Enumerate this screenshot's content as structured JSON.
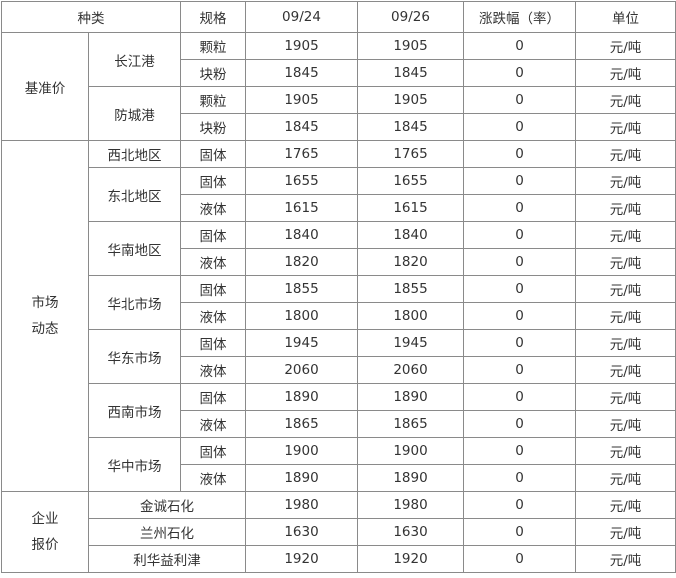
{
  "header": [
    "种类",
    "规格",
    "09/24",
    "09/26",
    "涨跌幅（率）",
    "单位"
  ],
  "groups": [
    {
      "name": "基准价",
      "subgroups": [
        {
          "name": "长江港",
          "rows": [
            {
              "spec": "颗粒",
              "d1": 1905,
              "d2": 1905,
              "change": 0,
              "unit": "元/吨"
            },
            {
              "spec": "块粉",
              "d1": 1845,
              "d2": 1845,
              "change": 0,
              "unit": "元/吨"
            }
          ]
        },
        {
          "name": "防城港",
          "rows": [
            {
              "spec": "颗粒",
              "d1": 1905,
              "d2": 1905,
              "change": 0,
              "unit": "元/吨"
            },
            {
              "spec": "块粉",
              "d1": 1845,
              "d2": 1845,
              "change": 0,
              "unit": "元/吨"
            }
          ]
        }
      ]
    },
    {
      "name": "市场动态",
      "subgroups": [
        {
          "name": "西北地区",
          "rows": [
            {
              "spec": "固体",
              "d1": 1765,
              "d2": 1765,
              "change": 0,
              "unit": "元/吨"
            }
          ]
        },
        {
          "name": "东北地区",
          "rows": [
            {
              "spec": "固体",
              "d1": 1655,
              "d2": 1655,
              "change": 0,
              "unit": "元/吨"
            },
            {
              "spec": "液体",
              "d1": 1615,
              "d2": 1615,
              "change": 0,
              "unit": "元/吨"
            }
          ]
        },
        {
          "name": "华南地区",
          "rows": [
            {
              "spec": "固体",
              "d1": 1840,
              "d2": 1840,
              "change": 0,
              "unit": "元/吨"
            },
            {
              "spec": "液体",
              "d1": 1820,
              "d2": 1820,
              "change": 0,
              "unit": "元/吨"
            }
          ]
        },
        {
          "name": "华北市场",
          "rows": [
            {
              "spec": "固体",
              "d1": 1855,
              "d2": 1855,
              "change": 0,
              "unit": "元/吨"
            },
            {
              "spec": "液体",
              "d1": 1800,
              "d2": 1800,
              "change": 0,
              "unit": "元/吨"
            }
          ]
        },
        {
          "name": "华东市场",
          "rows": [
            {
              "spec": "固体",
              "d1": 1945,
              "d2": 1945,
              "change": 0,
              "unit": "元/吨"
            },
            {
              "spec": "液体",
              "d1": 2060,
              "d2": 2060,
              "change": 0,
              "unit": "元/吨"
            }
          ]
        },
        {
          "name": "西南市场",
          "rows": [
            {
              "spec": "固体",
              "d1": 1890,
              "d2": 1890,
              "change": 0,
              "unit": "元/吨"
            },
            {
              "spec": "液体",
              "d1": 1865,
              "d2": 1865,
              "change": 0,
              "unit": "元/吨"
            }
          ]
        },
        {
          "name": "华中市场",
          "rows": [
            {
              "spec": "固体",
              "d1": 1900,
              "d2": 1900,
              "change": 0,
              "unit": "元/吨"
            },
            {
              "spec": "液体",
              "d1": 1890,
              "d2": 1890,
              "change": 0,
              "unit": "元/吨"
            }
          ]
        }
      ]
    },
    {
      "name": "企业报价",
      "subgroups": [
        {
          "name": "金诚石化",
          "rows": [
            {
              "d1": 1980,
              "d2": 1980,
              "change": 0,
              "unit": "元/吨"
            }
          ]
        },
        {
          "name": "兰州石化",
          "rows": [
            {
              "d1": 1630,
              "d2": 1630,
              "change": 0,
              "unit": "元/吨"
            }
          ]
        },
        {
          "name": "利华益利津",
          "rows": [
            {
              "d1": 1920,
              "d2": 1920,
              "change": 0,
              "unit": "元/吨"
            }
          ]
        }
      ]
    }
  ]
}
